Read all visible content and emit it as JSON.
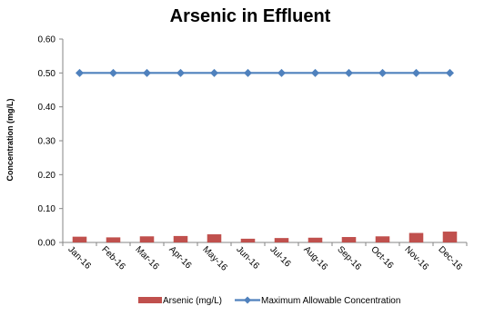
{
  "chart_data": {
    "type": "bar",
    "title": "Arsenic in Effluent",
    "ylabel": "Concentration (mg/L)",
    "xlabel": "",
    "ylim": [
      0,
      0.6
    ],
    "yticks": [
      "0.00",
      "0.10",
      "0.20",
      "0.30",
      "0.40",
      "0.50",
      "0.60"
    ],
    "categories": [
      "Jan-16",
      "Feb-16",
      "Mar-16",
      "Apr-16",
      "May-16",
      "Jun-16",
      "Jul-16",
      "Aug-16",
      "Sep-16",
      "Oct-16",
      "Nov-16",
      "Dec-16"
    ],
    "grid": false,
    "legend_position": "bottom",
    "series": [
      {
        "name": "Arsenic (mg/L)",
        "kind": "bar",
        "color": "#c0504d",
        "values": [
          0.017,
          0.015,
          0.018,
          0.019,
          0.024,
          0.011,
          0.013,
          0.014,
          0.016,
          0.018,
          0.028,
          0.032
        ]
      },
      {
        "name": "Maximum Allowable Concentration",
        "kind": "line",
        "marker": "diamond",
        "color": "#4f81bd",
        "values": [
          0.5,
          0.5,
          0.5,
          0.5,
          0.5,
          0.5,
          0.5,
          0.5,
          0.5,
          0.5,
          0.5,
          0.5
        ]
      }
    ]
  }
}
